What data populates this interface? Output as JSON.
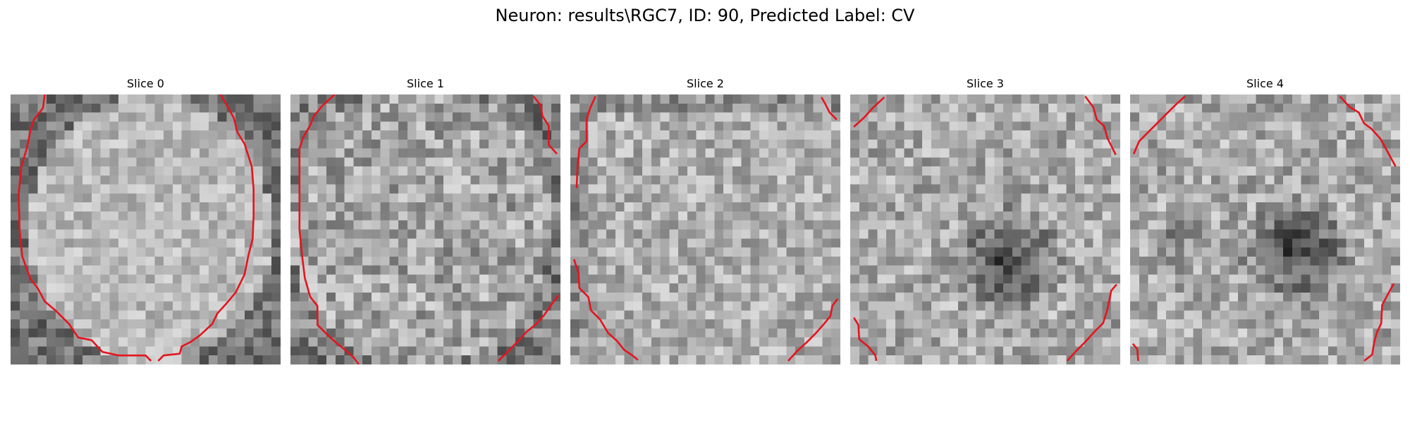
{
  "figure": {
    "suptitle": "Neuron: results\\RGC7, ID: 90, Predicted Label: CV"
  },
  "slices": [
    {
      "title": "Slice 0",
      "dark_center": false
    },
    {
      "title": "Slice 1",
      "dark_center": false
    },
    {
      "title": "Slice 2",
      "dark_center": false
    },
    {
      "title": "Slice 3",
      "dark_center": true
    },
    {
      "title": "Slice 4",
      "dark_center": true
    }
  ],
  "colors": {
    "contour": "#e6141e",
    "colormap": "gray"
  }
}
